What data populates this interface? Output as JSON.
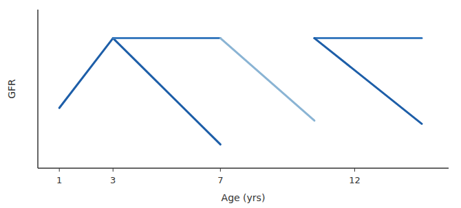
{
  "chart_data": {
    "type": "line",
    "xlabel": "Age (yrs)",
    "ylabel": "GFR",
    "series": [
      {
        "x": [
          1,
          3
        ],
        "values": [
          0.38,
          0.82
        ],
        "color": "#1d5ea8"
      },
      {
        "x": [
          3,
          7
        ],
        "values": [
          0.82,
          0.15
        ],
        "color": "#1d5ea8"
      },
      {
        "x": [
          3,
          7
        ],
        "values": [
          0.82,
          0.82
        ],
        "color": "#3a7bbf"
      },
      {
        "x": [
          7,
          10.5
        ],
        "values": [
          0.82,
          0.3
        ],
        "color": "#8ab4d4"
      },
      {
        "x": [
          10.5,
          14.5
        ],
        "values": [
          0.82,
          0.82
        ],
        "color": "#3a7bbf"
      },
      {
        "x": [
          10.5,
          14.5
        ],
        "values": [
          0.82,
          0.28
        ],
        "color": "#1d5ea8"
      }
    ],
    "xlim": [
      0.2,
      15.5
    ],
    "ylim": [
      0,
      1.0
    ],
    "xticks": [
      1,
      3,
      7,
      12
    ],
    "tick_labels": "x"
  }
}
